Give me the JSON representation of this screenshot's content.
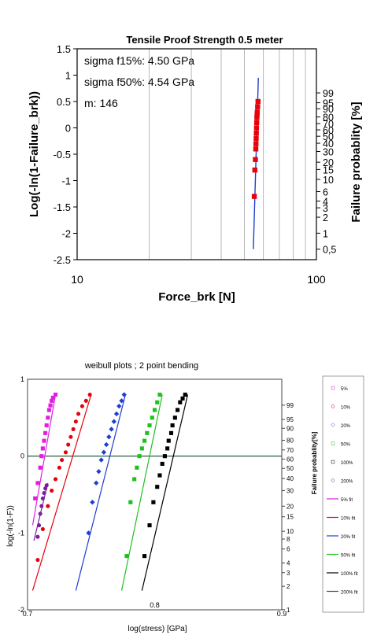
{
  "chart_data": [
    {
      "type": "scatter",
      "title": "Tensile Proof Strength 0.5 meter",
      "xlabel": "Force_brk [N]",
      "ylabel": "Log(-ln(1-Failure_brk))",
      "y2label": "Failure probablity [%]",
      "x_scale": "log",
      "xlim": [
        10,
        100
      ],
      "ylim": [
        -2.5,
        1.5
      ],
      "x_ticks": [
        "10",
        "100"
      ],
      "y_ticks": [
        "1.5",
        "1",
        "0.5",
        "0",
        "-0.5",
        "-1",
        "-1.5",
        "-2",
        "-2.5"
      ],
      "y2_ticks": [
        "99",
        "95",
        "90",
        "80",
        "70",
        "60",
        "50",
        "40",
        "30",
        "20",
        "15",
        "10",
        "6",
        "4",
        "3",
        "2",
        "1",
        "0,5"
      ],
      "annotations": [
        "sigma  f15%: 4.50 GPa",
        "sigma  f50%: 4.54 GPa",
        "m: 146"
      ],
      "grid": "vertical",
      "series": [
        {
          "marker": "square",
          "color": "#e8000b",
          "x": [
            55.0,
            55.3,
            55.6,
            55.8,
            55.9,
            56.0,
            56.1,
            56.2,
            56.3,
            56.4,
            56.5,
            56.6,
            56.8,
            57.0
          ],
          "y": [
            -1.3,
            -0.8,
            -0.6,
            -0.4,
            -0.3,
            -0.2,
            -0.1,
            0.0,
            0.1,
            0.2,
            0.25,
            0.3,
            0.4,
            0.5
          ]
        },
        {
          "type": "line",
          "color": "#1f3fd0",
          "x": [
            54.5,
            57.2
          ],
          "y": [
            -2.3,
            0.95
          ]
        }
      ]
    },
    {
      "type": "scatter",
      "title": "weibull plots ; 2 point bending",
      "xlabel": "log(stress) [GPa]",
      "ylabel": "log(-ln(1-F))",
      "y2label": "Failure probablity[%]",
      "xlim": [
        0.7,
        0.9
      ],
      "ylim": [
        -2,
        1
      ],
      "x_ticks": [
        "0.7",
        "0.8",
        "0.9"
      ],
      "y_ticks": [
        "1",
        "0",
        "-1",
        "-2"
      ],
      "y2_ticks": [
        "99",
        "95",
        "90",
        "80",
        "70",
        "60",
        "50",
        "40",
        "30",
        "20",
        "15",
        "10",
        "8",
        "6",
        "4",
        "3",
        "2",
        "1"
      ],
      "hline": 0.0,
      "legend_position": "right",
      "legend": [
        {
          "label": "5%",
          "color": "#e020e0",
          "kind": "marker"
        },
        {
          "label": "10%",
          "color": "#e8000b",
          "kind": "marker"
        },
        {
          "label": "20%",
          "color": "#1f3fd0",
          "kind": "marker"
        },
        {
          "label": "50%",
          "color": "#20c020",
          "kind": "marker"
        },
        {
          "label": "100%",
          "color": "#000000",
          "kind": "marker"
        },
        {
          "label": "200%",
          "color": "#7a1fa0",
          "kind": "marker"
        },
        {
          "label": "5% fit",
          "color": "#e020e0",
          "kind": "line"
        },
        {
          "label": "10% fit",
          "color": "#e8000b",
          "kind": "line"
        },
        {
          "label": "20% fit",
          "color": "#1f3fd0",
          "kind": "line"
        },
        {
          "label": "50% fit",
          "color": "#20c020",
          "kind": "line"
        },
        {
          "label": "100% fit",
          "color": "#000000",
          "kind": "line"
        },
        {
          "label": "200% fit",
          "color": "#7a1fa0",
          "kind": "line"
        }
      ],
      "series": [
        {
          "name": "5%",
          "color": "#e020e0",
          "marker": "square",
          "x": [
            0.706,
            0.708,
            0.71,
            0.711,
            0.712,
            0.713,
            0.714,
            0.715,
            0.716,
            0.717,
            0.718,
            0.719,
            0.72,
            0.722
          ],
          "y": [
            -0.55,
            -0.35,
            -0.15,
            0.0,
            0.1,
            0.2,
            0.3,
            0.4,
            0.5,
            0.6,
            0.66,
            0.72,
            0.76,
            0.8
          ]
        },
        {
          "name": "10%",
          "color": "#e8000b",
          "marker": "circle",
          "x": [
            0.708,
            0.712,
            0.716,
            0.719,
            0.722,
            0.725,
            0.727,
            0.73,
            0.732,
            0.734,
            0.736,
            0.738,
            0.74,
            0.743,
            0.746,
            0.749
          ],
          "y": [
            -1.35,
            -0.95,
            -0.65,
            -0.45,
            -0.3,
            -0.15,
            -0.05,
            0.05,
            0.15,
            0.25,
            0.35,
            0.45,
            0.55,
            0.65,
            0.72,
            0.8
          ]
        },
        {
          "name": "20%",
          "color": "#1f3fd0",
          "marker": "diamond",
          "x": [
            0.748,
            0.751,
            0.754,
            0.756,
            0.758,
            0.76,
            0.762,
            0.764,
            0.766,
            0.768,
            0.77,
            0.772,
            0.774,
            0.776
          ],
          "y": [
            -1.0,
            -0.6,
            -0.35,
            -0.2,
            -0.05,
            0.05,
            0.15,
            0.25,
            0.35,
            0.45,
            0.55,
            0.65,
            0.72,
            0.8
          ]
        },
        {
          "name": "50%",
          "color": "#20c020",
          "marker": "square",
          "x": [
            0.778,
            0.781,
            0.784,
            0.786,
            0.788,
            0.79,
            0.792,
            0.794,
            0.796,
            0.798,
            0.8,
            0.802,
            0.804
          ],
          "y": [
            -1.3,
            -0.6,
            -0.3,
            -0.15,
            0.0,
            0.1,
            0.2,
            0.3,
            0.4,
            0.5,
            0.6,
            0.7,
            0.8
          ]
        },
        {
          "name": "100%",
          "color": "#000000",
          "marker": "square",
          "x": [
            0.792,
            0.796,
            0.799,
            0.802,
            0.804,
            0.806,
            0.808,
            0.81,
            0.811,
            0.813,
            0.814,
            0.816,
            0.818,
            0.82,
            0.822,
            0.824
          ],
          "y": [
            -1.3,
            -0.9,
            -0.6,
            -0.4,
            -0.25,
            -0.1,
            0.0,
            0.1,
            0.2,
            0.3,
            0.4,
            0.5,
            0.6,
            0.7,
            0.75,
            0.8
          ]
        },
        {
          "name": "200%",
          "color": "#7a1fa0",
          "marker": "circle",
          "x": [
            0.708,
            0.709,
            0.71,
            0.711,
            0.712,
            0.713,
            0.714,
            0.715
          ],
          "y": [
            -1.05,
            -0.9,
            -0.75,
            -0.65,
            -0.55,
            -0.48,
            -0.42,
            -0.38
          ]
        },
        {
          "name": "5% fit",
          "color": "#e020e0",
          "type": "line",
          "x": [
            0.704,
            0.722
          ],
          "y": [
            -0.9,
            0.8
          ]
        },
        {
          "name": "10% fit",
          "color": "#e8000b",
          "type": "line",
          "x": [
            0.704,
            0.75
          ],
          "y": [
            -1.75,
            0.8
          ]
        },
        {
          "name": "20% fit",
          "color": "#1f3fd0",
          "type": "line",
          "x": [
            0.738,
            0.777
          ],
          "y": [
            -1.75,
            0.8
          ]
        },
        {
          "name": "50% fit",
          "color": "#20c020",
          "type": "line",
          "x": [
            0.774,
            0.806
          ],
          "y": [
            -1.75,
            0.8
          ]
        },
        {
          "name": "100% fit",
          "color": "#000000",
          "type": "line",
          "x": [
            0.79,
            0.826
          ],
          "y": [
            -1.75,
            0.8
          ]
        },
        {
          "name": "200% fit",
          "color": "#7a1fa0",
          "type": "line",
          "x": [
            0.705,
            0.716
          ],
          "y": [
            -1.1,
            -0.35
          ]
        }
      ]
    }
  ]
}
